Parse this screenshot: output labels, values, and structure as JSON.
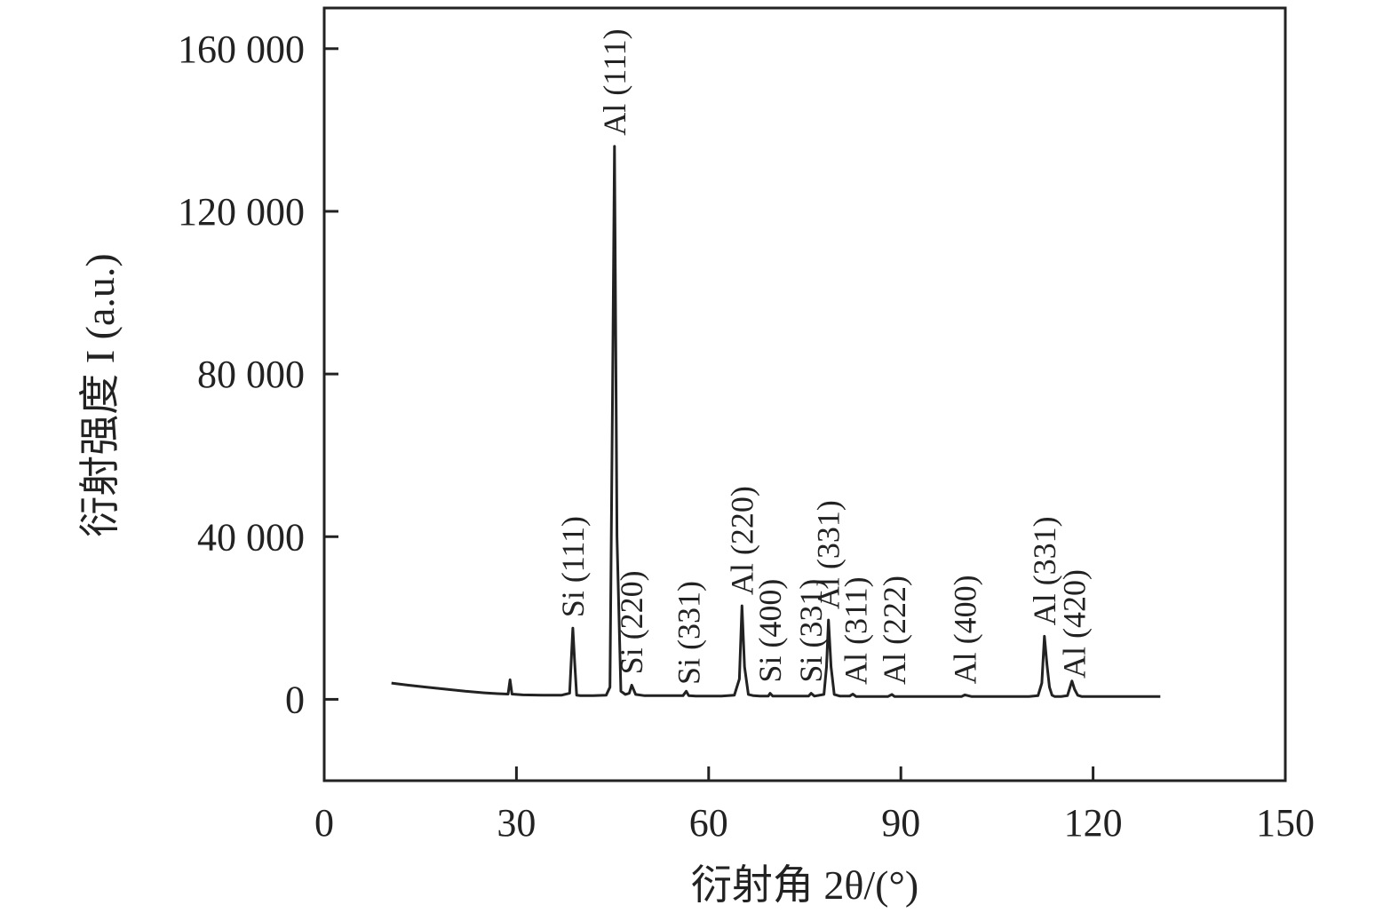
{
  "chart_data": {
    "type": "line",
    "xlabel": "衍射角 2θ/(°)",
    "ylabel": "衍射强度 I (a.u.)",
    "xlim": [
      0,
      150
    ],
    "ylim": [
      -20000,
      170000
    ],
    "x_ticks": [
      0,
      30,
      60,
      90,
      120,
      150
    ],
    "x_tick_labels": [
      "0",
      "30",
      "60",
      "90",
      "120",
      "150"
    ],
    "y_ticks": [
      0,
      40000,
      80000,
      120000,
      160000
    ],
    "y_tick_labels": [
      "0",
      "40 000",
      "80 000",
      "120 000",
      "160 000"
    ],
    "grid": false,
    "series": [
      {
        "x": [
          10.5,
          13,
          16,
          19,
          22,
          25,
          27,
          28.7,
          29,
          29.3,
          31,
          34,
          37,
          38.3,
          38.8,
          39.1,
          39.4,
          40,
          42,
          44,
          44.6,
          45,
          45.3,
          45.7,
          46.3,
          47,
          47.6,
          48,
          48.6,
          50,
          52,
          54,
          56,
          56.5,
          56.9,
          58,
          60,
          62,
          64,
          64.8,
          65.2,
          65.6,
          66.2,
          67,
          68,
          69.3,
          69.6,
          70,
          72,
          74,
          75.6,
          76,
          76.5,
          78,
          78.4,
          78.7,
          79.1,
          79.6,
          80.5,
          82,
          82.5,
          83,
          84,
          86,
          88,
          88.6,
          89,
          90,
          92,
          95,
          98,
          99.5,
          100,
          101,
          104,
          107,
          110,
          111.4,
          112,
          112.4,
          112.8,
          113.2,
          113.6,
          114,
          115,
          116,
          116.7,
          117.1,
          117.6,
          118.2,
          120,
          123,
          126,
          130.5
        ],
        "y": [
          4000,
          3500,
          3000,
          2500,
          2000,
          1600,
          1400,
          1300,
          4800,
          1300,
          1100,
          1000,
          1000,
          1500,
          17500,
          9000,
          1000,
          900,
          900,
          1000,
          3000,
          75000,
          136000,
          40000,
          2000,
          1200,
          1500,
          3500,
          1200,
          900,
          900,
          900,
          900,
          2000,
          900,
          800,
          800,
          800,
          1000,
          5000,
          23000,
          8000,
          1200,
          900,
          800,
          800,
          1500,
          800,
          800,
          800,
          800,
          1500,
          800,
          1200,
          8000,
          19500,
          8000,
          1200,
          800,
          800,
          1300,
          700,
          700,
          700,
          700,
          1200,
          700,
          700,
          700,
          700,
          700,
          700,
          1100,
          700,
          700,
          700,
          700,
          900,
          4000,
          15500,
          8500,
          3000,
          1000,
          700,
          700,
          900,
          4500,
          2500,
          1000,
          700,
          700,
          700,
          700,
          700
        ]
      }
    ],
    "annotations": [
      {
        "text": "Si (111)",
        "x": 38.8
      },
      {
        "text": "Al (111)",
        "x": 45.3
      },
      {
        "text": "Si (220)",
        "x": 48
      },
      {
        "text": "Si (331)",
        "x": 56.9
      },
      {
        "text": "Al (220)",
        "x": 65.2
      },
      {
        "text": "Si (400)",
        "x": 69.6
      },
      {
        "text": "Si (331)",
        "x": 76
      },
      {
        "text": "Al (331)",
        "x": 78.7
      },
      {
        "text": "Al (311)",
        "x": 83
      },
      {
        "text": "Al (222)",
        "x": 89
      },
      {
        "text": "Al (400)",
        "x": 100
      },
      {
        "text": "Al (331)",
        "x": 112.4
      },
      {
        "text": "Al (420)",
        "x": 117.1
      }
    ]
  }
}
